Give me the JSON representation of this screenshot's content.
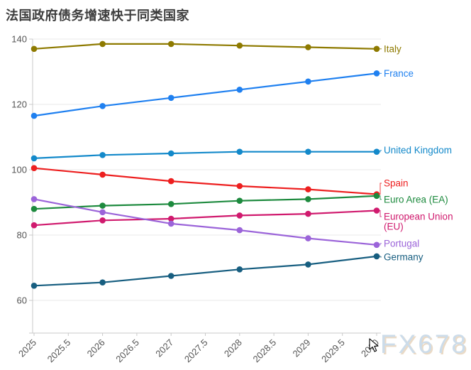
{
  "title": "法国政府债务增速快于同类国家",
  "watermark": "FX678",
  "chart_data": {
    "type": "line",
    "x": [
      2025,
      2026,
      2027,
      2028,
      2029,
      2030
    ],
    "x_tick_labels": [
      "2025",
      "2025.5",
      "2026",
      "2026.5",
      "2027",
      "2027.5",
      "2028",
      "2028.5",
      "2029",
      "2029.5",
      "2030"
    ],
    "xlim": [
      2025,
      2030
    ],
    "ylim": [
      50,
      140
    ],
    "y_ticks": [
      60,
      80,
      100,
      120,
      140
    ],
    "grid": "horizontal",
    "legend_position": "right",
    "grid_color": "#e9e9e9",
    "axis_color": "#c9c9c9",
    "tick_label_color": "#555555",
    "series": [
      {
        "name": "Italy",
        "color": "#8e7a00",
        "values": [
          137,
          138.5,
          138.5,
          138,
          137.5,
          137
        ]
      },
      {
        "name": "France",
        "color": "#1f80f0",
        "values": [
          116.5,
          119.5,
          122,
          124.5,
          127,
          129.5
        ]
      },
      {
        "name": "United Kingdom",
        "color": "#1389ca",
        "values": [
          103.5,
          104.5,
          105,
          105.5,
          105.5,
          105.5
        ]
      },
      {
        "name": "Spain",
        "color": "#ed1f1f",
        "values": [
          100.5,
          98.5,
          96.5,
          95,
          94,
          92.5
        ]
      },
      {
        "name": "Euro Area (EA)",
        "color": "#1d8a3e",
        "values": [
          88,
          89,
          89.5,
          90.5,
          91,
          92
        ]
      },
      {
        "name": "European Union (EU)",
        "color": "#d01a6e",
        "label_lines": [
          "European Union",
          "(EU)"
        ],
        "values": [
          83,
          84.5,
          85,
          86,
          86.5,
          87.5
        ]
      },
      {
        "name": "Portugal",
        "color": "#9b64d9",
        "values": [
          91,
          87,
          83.5,
          81.5,
          79,
          77
        ]
      },
      {
        "name": "Germany",
        "color": "#175e80",
        "values": [
          64.5,
          65.5,
          67.5,
          69.5,
          71,
          73.5
        ]
      }
    ]
  }
}
